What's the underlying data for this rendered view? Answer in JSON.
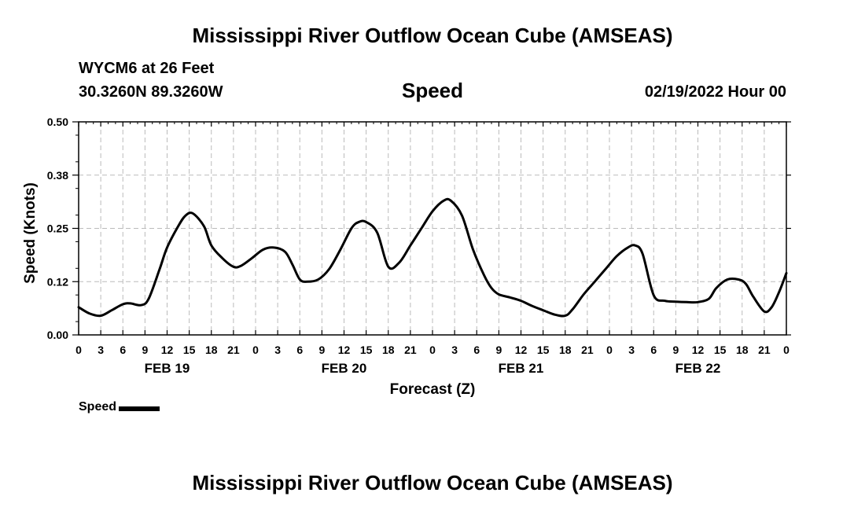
{
  "header": {
    "title_top": "Mississippi River Outflow Ocean Cube (AMSEAS)",
    "title_bottom": "Mississippi River Outflow Ocean Cube (AMSEAS)",
    "station": "WYCM6 at 26 Feet",
    "coordinates": "30.3260N  89.3260W",
    "parameter": "Speed",
    "datetime": "02/19/2022 Hour 00"
  },
  "legend": {
    "label": "Speed"
  },
  "colors": {
    "line": "#000000",
    "grid": "#bbbbbb"
  },
  "chart_data": {
    "type": "line",
    "title": "Speed",
    "xlabel": "Forecast (Z)",
    "ylabel": "Speed (Knots)",
    "xlim": [
      0,
      96
    ],
    "ylim": [
      0.0,
      0.5
    ],
    "yticks": [
      "0.00",
      "0.12",
      "0.25",
      "0.38",
      "0.50"
    ],
    "yticks_values": [
      0.0,
      0.125,
      0.25,
      0.375,
      0.5
    ],
    "xtick_labels": [
      "0",
      "3",
      "6",
      "9",
      "12",
      "15",
      "18",
      "21",
      "0",
      "3",
      "6",
      "9",
      "12",
      "15",
      "18",
      "21",
      "0",
      "3",
      "6",
      "9",
      "12",
      "15",
      "18",
      "21",
      "0",
      "3",
      "6",
      "9",
      "12",
      "15",
      "18",
      "21",
      "0"
    ],
    "day_labels": [
      {
        "label": "FEB 19",
        "hour": 12
      },
      {
        "label": "FEB 20",
        "hour": 36
      },
      {
        "label": "FEB 21",
        "hour": 60
      },
      {
        "label": "FEB 22",
        "hour": 84
      }
    ],
    "series": [
      {
        "name": "Speed",
        "x": [
          0,
          1.5,
          3,
          4.5,
          6,
          7,
          8.5,
          9.5,
          11,
          12,
          13.5,
          14.5,
          15.5,
          17,
          18,
          19.5,
          21,
          22,
          23.5,
          25,
          26.5,
          28,
          29,
          30,
          31,
          32.5,
          34,
          35.5,
          37,
          38,
          39,
          40.5,
          42,
          43.5,
          45,
          46.5,
          48,
          49.5,
          50.5,
          52,
          53.5,
          55,
          56,
          57,
          58.5,
          60,
          61.5,
          63,
          64.5,
          66,
          67,
          68.5,
          70,
          71.5,
          73,
          74.5,
          75.5,
          76.5,
          78,
          79.5,
          81,
          82.5,
          84,
          85.5,
          86.5,
          88,
          89.5,
          90.5,
          91.5,
          93,
          94,
          95,
          96
        ],
        "values": [
          0.065,
          0.05,
          0.045,
          0.058,
          0.072,
          0.074,
          0.07,
          0.085,
          0.155,
          0.205,
          0.255,
          0.28,
          0.285,
          0.255,
          0.21,
          0.18,
          0.16,
          0.162,
          0.18,
          0.2,
          0.205,
          0.195,
          0.165,
          0.13,
          0.125,
          0.13,
          0.155,
          0.2,
          0.25,
          0.265,
          0.265,
          0.24,
          0.16,
          0.17,
          0.21,
          0.25,
          0.29,
          0.315,
          0.315,
          0.28,
          0.2,
          0.14,
          0.11,
          0.095,
          0.088,
          0.08,
          0.068,
          0.058,
          0.048,
          0.045,
          0.06,
          0.095,
          0.125,
          0.155,
          0.185,
          0.205,
          0.21,
          0.19,
          0.093,
          0.08,
          0.078,
          0.077,
          0.077,
          0.085,
          0.11,
          0.13,
          0.13,
          0.12,
          0.09,
          0.055,
          0.065,
          0.1,
          0.145
        ]
      }
    ]
  }
}
